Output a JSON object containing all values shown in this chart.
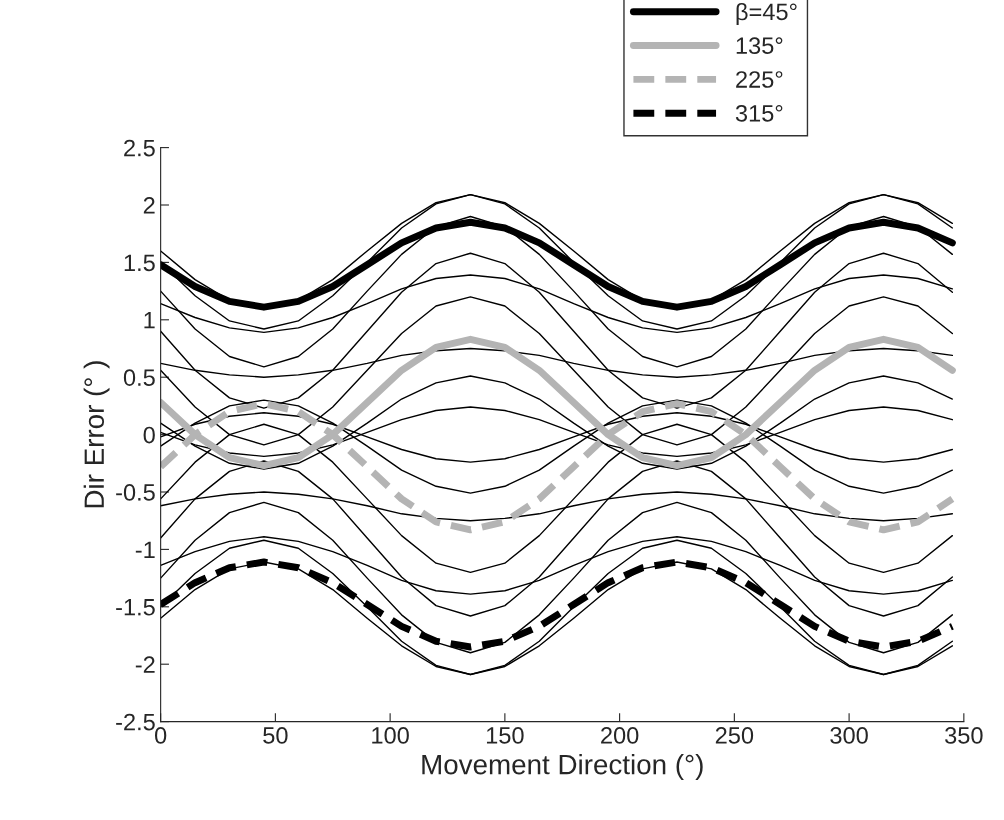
{
  "chart_data": {
    "type": "line",
    "xlabel": "Movement Direction (°)",
    "ylabel": "Dir Error (° )",
    "x": [
      0,
      15,
      30,
      45,
      60,
      75,
      90,
      105,
      120,
      135,
      150,
      165,
      180,
      195,
      210,
      225,
      240,
      255,
      270,
      285,
      300,
      315,
      330,
      345
    ],
    "xlim": [
      0,
      350
    ],
    "xticks": [
      0,
      50,
      100,
      150,
      200,
      250,
      300,
      350
    ],
    "ylim": [
      -2.5,
      2.5
    ],
    "yticks": [
      -2.5,
      -2,
      -1.5,
      -1,
      -0.5,
      0,
      0.5,
      1,
      1.5,
      2,
      2.5
    ],
    "grid": false,
    "legend": "top right",
    "marker": "none",
    "series": [
      {
        "color": "#000000",
        "values": [
          0.62,
          0.56,
          0.52,
          0.5,
          0.52,
          0.56,
          0.62,
          0.69,
          0.73,
          0.75,
          0.73,
          0.69,
          0.62,
          0.56,
          0.52,
          0.5,
          0.52,
          0.56,
          0.62,
          0.69,
          0.73,
          0.75,
          0.73,
          0.69
        ]
      },
      {
        "color": "#000000",
        "values": [
          1.14,
          1.02,
          0.93,
          0.89,
          0.93,
          1.02,
          1.14,
          1.27,
          1.36,
          1.39,
          1.36,
          1.27,
          1.14,
          1.02,
          0.93,
          0.89,
          0.93,
          1.02,
          1.14,
          1.27,
          1.36,
          1.39,
          1.36,
          1.27
        ]
      },
      {
        "color": "#000000",
        "values": [
          1.6,
          1.35,
          1.17,
          1.11,
          1.17,
          1.35,
          1.6,
          1.84,
          2.02,
          2.09,
          2.02,
          1.84,
          1.6,
          1.35,
          1.17,
          1.11,
          1.17,
          1.35,
          1.6,
          1.84,
          2.02,
          2.09,
          2.02,
          1.84
        ]
      },
      {
        "color": "#000000",
        "values": [
          1.5,
          1.21,
          0.99,
          0.92,
          0.99,
          1.21,
          1.5,
          1.8,
          2.01,
          2.09,
          2.01,
          1.8,
          1.5,
          1.21,
          0.99,
          0.92,
          0.99,
          1.21,
          1.5,
          1.8,
          2.01,
          2.09,
          2.01,
          1.8
        ]
      },
      {
        "color": "#000000",
        "values": [
          1.25,
          0.92,
          0.68,
          0.59,
          0.68,
          0.92,
          1.25,
          1.57,
          1.81,
          1.9,
          1.81,
          1.57,
          1.25,
          0.92,
          0.68,
          0.59,
          0.68,
          0.92,
          1.25,
          1.57,
          1.81,
          1.9,
          1.81,
          1.57
        ]
      },
      {
        "color": "#000000",
        "values": [
          0.9,
          0.56,
          0.32,
          0.23,
          0.32,
          0.56,
          0.9,
          1.24,
          1.49,
          1.58,
          1.49,
          1.24,
          0.9,
          0.56,
          0.32,
          0.23,
          0.32,
          0.56,
          0.9,
          1.24,
          1.49,
          1.58,
          1.49,
          1.24
        ]
      },
      {
        "color": "#000000",
        "values": [
          0.56,
          0.24,
          0,
          -0.09,
          0,
          0.24,
          0.56,
          0.88,
          1.12,
          1.2,
          1.12,
          0.88,
          0.56,
          0.24,
          0,
          -0.09,
          0,
          0.24,
          0.56,
          0.88,
          1.12,
          1.2,
          1.12,
          0.88
        ]
      },
      {
        "color": "#000000",
        "values": [
          0.1,
          -0.1,
          -0.25,
          -0.3,
          -0.25,
          -0.1,
          0.1,
          0.31,
          0.45,
          0.51,
          0.45,
          0.31,
          0.1,
          -0.1,
          -0.25,
          -0.3,
          -0.25,
          -0.1,
          0.1,
          0.31,
          0.45,
          0.51,
          0.45,
          0.31
        ]
      },
      {
        "color": "#000000",
        "values": [
          0.02,
          -0.09,
          -0.16,
          -0.19,
          -0.16,
          -0.09,
          0.02,
          0.13,
          0.21,
          0.24,
          0.21,
          0.13,
          0.02,
          -0.09,
          -0.16,
          -0.19,
          -0.16,
          -0.09,
          0.02,
          0.13,
          0.21,
          0.24,
          0.21,
          0.13
        ]
      },
      {
        "color": "#000000",
        "values": [
          -0.02,
          0.09,
          0.16,
          0.19,
          0.16,
          0.09,
          -0.02,
          -0.13,
          -0.21,
          -0.24,
          -0.21,
          -0.13,
          -0.02,
          0.09,
          0.16,
          0.19,
          0.16,
          0.09,
          -0.02,
          -0.13,
          -0.21,
          -0.24,
          -0.21,
          -0.13
        ]
      },
      {
        "color": "#000000",
        "values": [
          -0.1,
          0.1,
          0.25,
          0.3,
          0.25,
          0.1,
          -0.1,
          -0.31,
          -0.45,
          -0.51,
          -0.45,
          -0.31,
          -0.1,
          0.1,
          0.25,
          0.3,
          0.25,
          0.1,
          -0.1,
          -0.31,
          -0.45,
          -0.51,
          -0.45,
          -0.31
        ]
      },
      {
        "color": "#000000",
        "values": [
          -0.56,
          -0.24,
          0,
          0.09,
          0,
          -0.24,
          -0.56,
          -0.88,
          -1.12,
          -1.2,
          -1.12,
          -0.88,
          -0.56,
          -0.24,
          0,
          0.09,
          0,
          -0.24,
          -0.56,
          -0.88,
          -1.12,
          -1.2,
          -1.12,
          -0.88
        ]
      },
      {
        "color": "#000000",
        "values": [
          -0.9,
          -0.56,
          -0.32,
          -0.23,
          -0.32,
          -0.56,
          -0.9,
          -1.24,
          -1.49,
          -1.58,
          -1.49,
          -1.24,
          -0.9,
          -0.56,
          -0.32,
          -0.23,
          -0.32,
          -0.56,
          -0.9,
          -1.24,
          -1.49,
          -1.58,
          -1.49,
          -1.24
        ]
      },
      {
        "color": "#000000",
        "values": [
          -1.25,
          -0.92,
          -0.68,
          -0.59,
          -0.68,
          -0.92,
          -1.25,
          -1.57,
          -1.81,
          -1.9,
          -1.81,
          -1.57,
          -1.25,
          -0.92,
          -0.68,
          -0.59,
          -0.68,
          -0.92,
          -1.25,
          -1.57,
          -1.81,
          -1.9,
          -1.81,
          -1.57
        ]
      },
      {
        "color": "#000000",
        "values": [
          -1.5,
          -1.21,
          -0.99,
          -0.92,
          -0.99,
          -1.21,
          -1.5,
          -1.8,
          -2.01,
          -2.09,
          -2.01,
          -1.8,
          -1.5,
          -1.21,
          -0.99,
          -0.92,
          -0.99,
          -1.21,
          -1.5,
          -1.8,
          -2.01,
          -2.09,
          -2.01,
          -1.8
        ]
      },
      {
        "color": "#000000",
        "values": [
          -1.6,
          -1.35,
          -1.17,
          -1.11,
          -1.17,
          -1.35,
          -1.6,
          -1.84,
          -2.02,
          -2.09,
          -2.02,
          -1.84,
          -1.6,
          -1.35,
          -1.17,
          -1.11,
          -1.17,
          -1.35,
          -1.6,
          -1.84,
          -2.02,
          -2.09,
          -2.02,
          -1.84
        ]
      },
      {
        "color": "#000000",
        "values": [
          -1.14,
          -1.02,
          -0.93,
          -0.89,
          -0.93,
          -1.02,
          -1.14,
          -1.27,
          -1.36,
          -1.39,
          -1.36,
          -1.27,
          -1.14,
          -1.02,
          -0.93,
          -0.89,
          -0.93,
          -1.02,
          -1.14,
          -1.27,
          -1.36,
          -1.39,
          -1.36,
          -1.27
        ]
      },
      {
        "color": "#000000",
        "values": [
          -0.62,
          -0.56,
          -0.52,
          -0.5,
          -0.52,
          -0.56,
          -0.62,
          -0.69,
          -0.73,
          -0.75,
          -0.73,
          -0.69,
          -0.62,
          -0.56,
          -0.52,
          -0.5,
          -0.52,
          -0.56,
          -0.62,
          -0.69,
          -0.73,
          -0.75,
          -0.73,
          -0.69
        ]
      },
      {
        "name": "β=45°",
        "color": "#000000",
        "line_style": "solid",
        "values": [
          1.48,
          1.29,
          1.16,
          1.11,
          1.16,
          1.29,
          1.48,
          1.67,
          1.8,
          1.85,
          1.8,
          1.67,
          1.48,
          1.29,
          1.16,
          1.11,
          1.16,
          1.29,
          1.48,
          1.67,
          1.8,
          1.85,
          1.8,
          1.67
        ]
      },
      {
        "name": "135°",
        "color": "#b4b4b4",
        "line_style": "solid",
        "values": [
          0.28,
          0,
          -0.2,
          -0.27,
          -0.2,
          0,
          0.28,
          0.56,
          0.76,
          0.83,
          0.76,
          0.56,
          0.28,
          0,
          -0.2,
          -0.27,
          -0.2,
          0,
          0.28,
          0.56,
          0.76,
          0.83,
          0.76,
          0.56
        ]
      },
      {
        "name": "225°",
        "color": "#b4b4b4",
        "line_style": "dashed",
        "values": [
          -0.28,
          0,
          0.2,
          0.27,
          0.2,
          0,
          -0.28,
          -0.56,
          -0.76,
          -0.83,
          -0.76,
          -0.56,
          -0.28,
          0,
          0.2,
          0.27,
          0.2,
          0,
          -0.28,
          -0.56,
          -0.76,
          -0.83,
          -0.76,
          -0.56
        ]
      },
      {
        "name": "315°",
        "color": "#000000",
        "line_style": "dashed",
        "values": [
          -1.48,
          -1.29,
          -1.16,
          -1.11,
          -1.16,
          -1.29,
          -1.48,
          -1.67,
          -1.8,
          -1.85,
          -1.8,
          -1.67,
          -1.48,
          -1.29,
          -1.16,
          -1.11,
          -1.16,
          -1.29,
          -1.48,
          -1.67,
          -1.8,
          -1.85,
          -1.8,
          -1.67
        ]
      }
    ]
  }
}
